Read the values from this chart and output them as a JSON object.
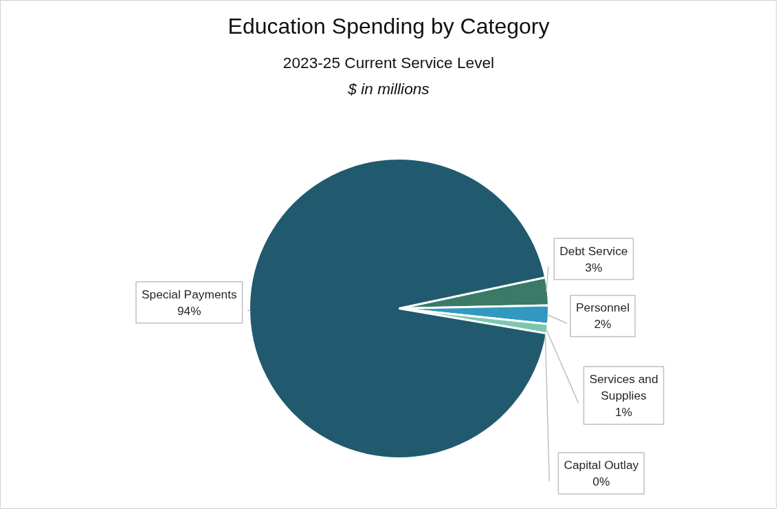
{
  "chart_data": {
    "type": "pie",
    "title": "Education Spending by Category",
    "subtitle": "2023-25 Current Service Level",
    "annotations": [
      "$ in millions"
    ],
    "categories": [
      "Debt Service",
      "Personnel",
      "Services and Supplies",
      "Capital Outlay",
      "Special Payments"
    ],
    "values": [
      3,
      2,
      1,
      0,
      94
    ],
    "value_labels": [
      "3%",
      "2%",
      "1%",
      "0%",
      "94%"
    ],
    "colors": [
      "#3a7a66",
      "#3398c0",
      "#7cc7b0",
      "#a8dccd",
      "#215a6e"
    ]
  }
}
